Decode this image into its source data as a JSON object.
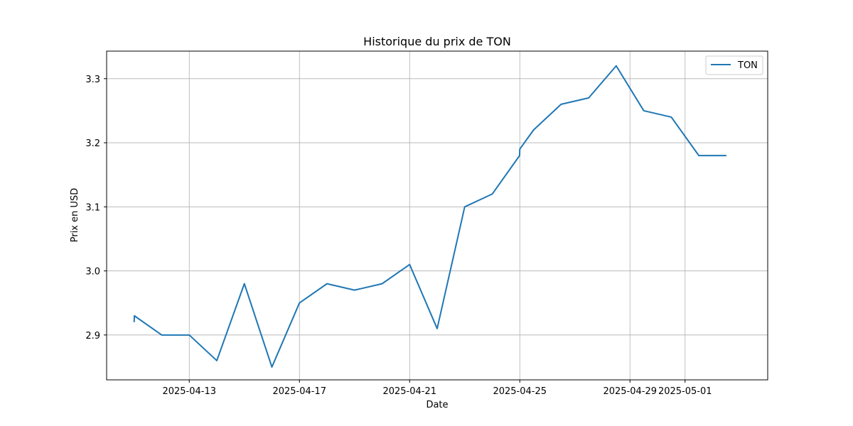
{
  "chart_data": {
    "type": "line",
    "title": "Historique du prix de TON",
    "xlabel": "Date",
    "ylabel": "Prix en USD",
    "grid": true,
    "legend_position": "top-right",
    "xlim": [
      "2025-04-10T00:00",
      "2025-05-04T00:00"
    ],
    "ylim": [
      2.83,
      3.343
    ],
    "x_ticks": [
      "2025-04-13",
      "2025-04-17",
      "2025-04-21",
      "2025-04-25",
      "2025-04-29",
      "2025-05-01"
    ],
    "y_ticks": [
      2.9,
      3.0,
      3.1,
      3.2,
      3.3
    ],
    "y_tick_labels": [
      "2.9",
      "3.0",
      "3.1",
      "3.2",
      "3.3"
    ],
    "series": [
      {
        "name": "TON",
        "color": "#1f77b4",
        "x": [
          "2025-04-11T00:00",
          "2025-04-11T00:10",
          "2025-04-12T00:00",
          "2025-04-13T00:00",
          "2025-04-14T00:00",
          "2025-04-15T00:00",
          "2025-04-16T00:00",
          "2025-04-17T00:00",
          "2025-04-18T00:00",
          "2025-04-19T00:00",
          "2025-04-20T00:00",
          "2025-04-21T00:00",
          "2025-04-22T00:00",
          "2025-04-23T00:00",
          "2025-04-24T00:00",
          "2025-04-24T23:50",
          "2025-04-25T00:00",
          "2025-04-25T12:00",
          "2025-04-26T12:00",
          "2025-04-27T12:00",
          "2025-04-28T12:00",
          "2025-04-29T12:00",
          "2025-04-30T12:00",
          "2025-05-01T12:00",
          "2025-05-02T12:00"
        ],
        "values": [
          2.92,
          2.93,
          2.9,
          2.9,
          2.86,
          2.98,
          2.85,
          2.95,
          2.98,
          2.97,
          2.98,
          3.01,
          2.91,
          3.1,
          3.12,
          3.18,
          3.19,
          3.22,
          3.26,
          3.27,
          3.32,
          3.25,
          3.24,
          3.18,
          3.18
        ]
      }
    ]
  }
}
